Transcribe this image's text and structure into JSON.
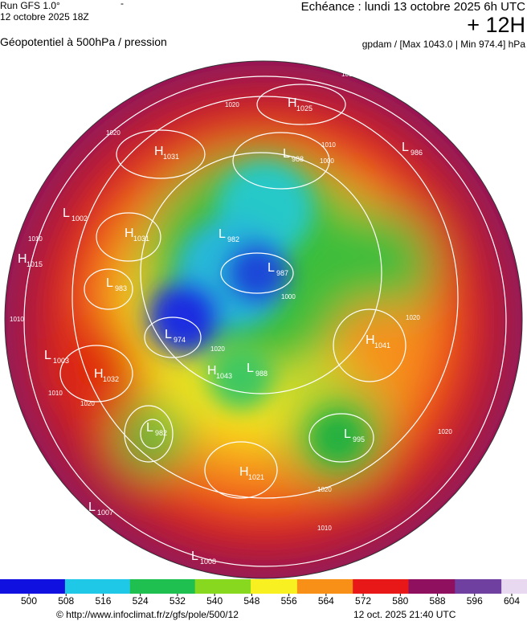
{
  "header": {
    "run": "Run GFS 1.0°",
    "run_date": "12 octobre 2025 18Z",
    "dash": "-",
    "echeance": "Echéance : lundi 13 octobre 2025 6h UTC",
    "lead": "+ 12H",
    "field": "Géopotentiel à 500hPa / pression",
    "units": "gpdam / [Max 1043.0 | Min 974.4] hPa"
  },
  "centers": [
    {
      "kind": "H",
      "value": 1025
    },
    {
      "kind": "L",
      "value": 986
    },
    {
      "kind": "H",
      "value": 1031
    },
    {
      "kind": "L",
      "value": 988
    },
    {
      "kind": "L",
      "value": 1002
    },
    {
      "kind": "H",
      "value": 1031
    },
    {
      "kind": "H",
      "value": 1015
    },
    {
      "kind": "L",
      "value": 982
    },
    {
      "kind": "L",
      "value": 987
    },
    {
      "kind": "L",
      "value": 983
    },
    {
      "kind": "L",
      "value": 974
    },
    {
      "kind": "H",
      "value": 1041
    },
    {
      "kind": "L",
      "value": 1003
    },
    {
      "kind": "H",
      "value": 1032
    },
    {
      "kind": "H",
      "value": 1043
    },
    {
      "kind": "L",
      "value": 988
    },
    {
      "kind": "L",
      "value": 982
    },
    {
      "kind": "L",
      "value": 995
    },
    {
      "kind": "H",
      "value": 1021
    },
    {
      "kind": "L",
      "value": 1007
    },
    {
      "kind": "L",
      "value": 1008
    }
  ],
  "contour_labels": [
    1010,
    1020,
    1020,
    1010,
    1000,
    1010,
    1010,
    1020,
    1000,
    1020,
    1010,
    1020,
    1010,
    1020,
    1020
  ],
  "colorbar": {
    "ticks": [
      500,
      508,
      516,
      524,
      532,
      540,
      548,
      556,
      564,
      572,
      580,
      588,
      596,
      604
    ]
  },
  "footer": {
    "url": "© http://www.infoclimat.fr/z/gfs/pole/500/12",
    "stamp": "12 oct. 2025 21:40 UTC"
  }
}
